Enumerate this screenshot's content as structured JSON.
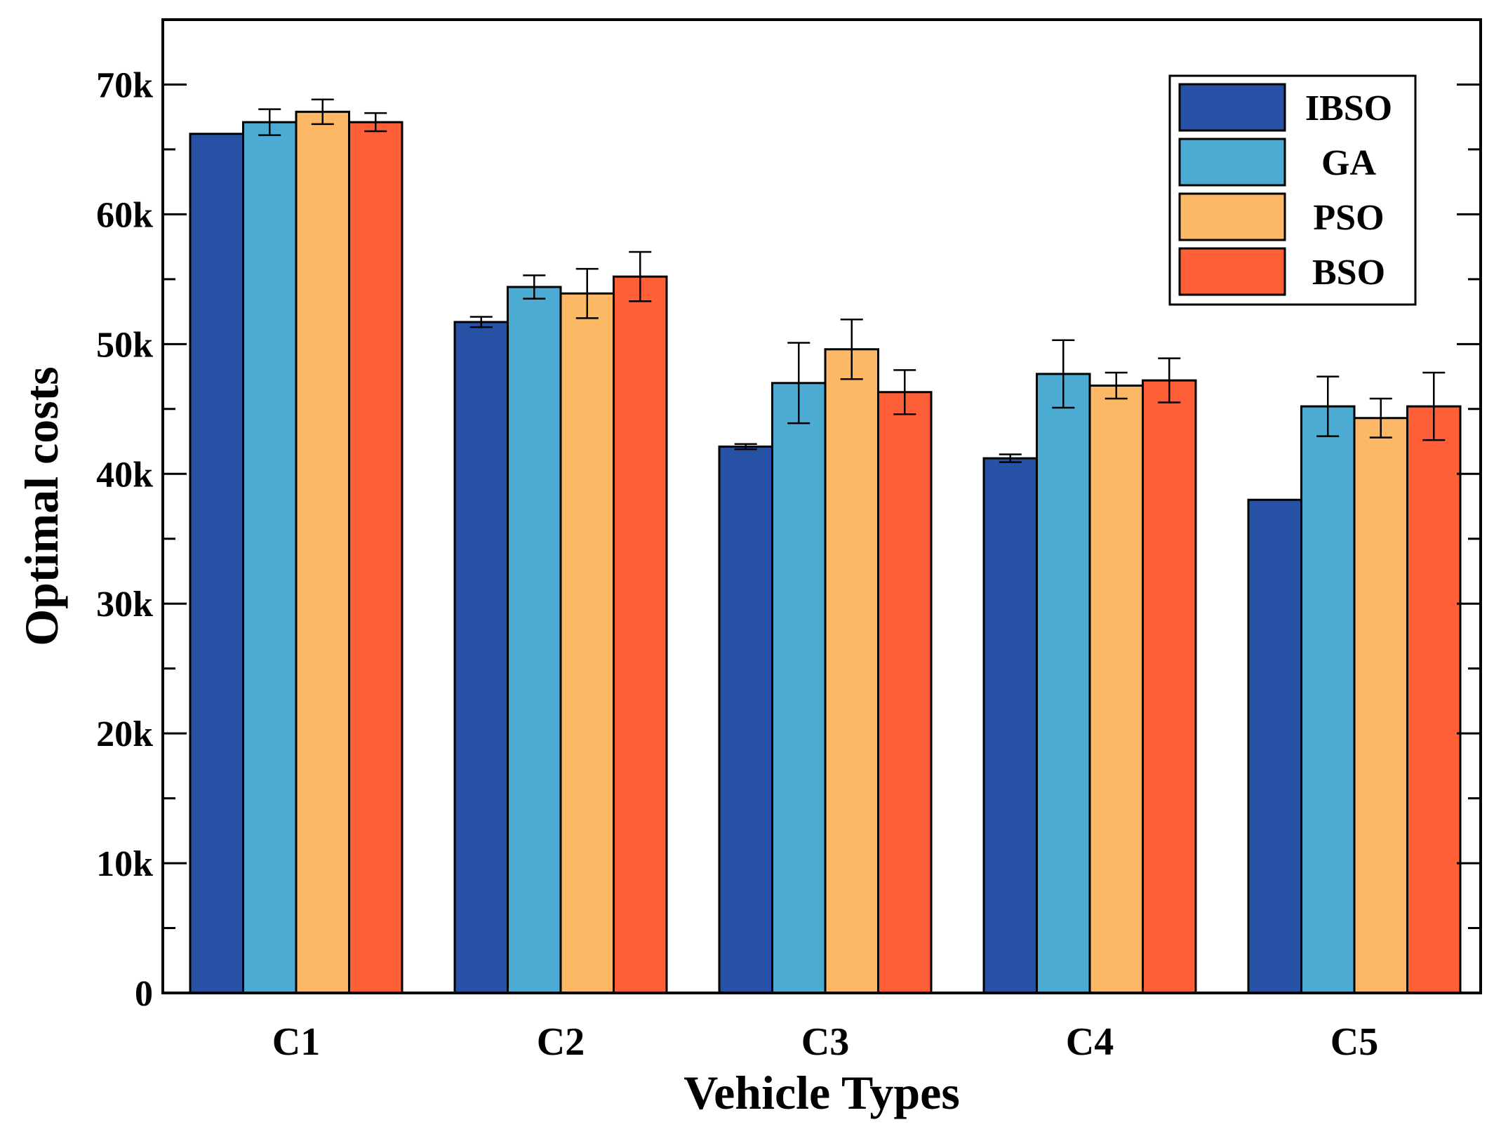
{
  "chart_data": {
    "type": "bar",
    "title": "",
    "xlabel": "Vehicle Types",
    "ylabel": "Optimal costs",
    "categories": [
      "C1",
      "C2",
      "C3",
      "C4",
      "C5"
    ],
    "ylim": [
      0,
      75000
    ],
    "yticks": [
      0,
      10000,
      20000,
      30000,
      40000,
      50000,
      60000,
      70000
    ],
    "ytick_labels": [
      "0",
      "10k",
      "20k",
      "30k",
      "40k",
      "50k",
      "60k",
      "70k"
    ],
    "legend_position": "top-right",
    "series": [
      {
        "name": "IBSO",
        "color": "#2751A4",
        "values": [
          66200,
          51700,
          42100,
          41200,
          38000
        ],
        "errors": [
          0,
          400,
          200,
          300,
          0
        ]
      },
      {
        "name": "GA",
        "color": "#4BABD3",
        "values": [
          67100,
          54400,
          47000,
          47700,
          45200
        ],
        "errors": [
          1000,
          900,
          3100,
          2600,
          2300
        ]
      },
      {
        "name": "PSO",
        "color": "#FDB866",
        "values": [
          67900,
          53900,
          49600,
          46800,
          44300
        ],
        "errors": [
          950,
          1900,
          2300,
          1000,
          1500
        ]
      },
      {
        "name": "BSO",
        "color": "#FF5F36",
        "values": [
          67100,
          55200,
          46300,
          47200,
          45200
        ],
        "errors": [
          700,
          1900,
          1700,
          1700,
          2600
        ]
      }
    ]
  }
}
